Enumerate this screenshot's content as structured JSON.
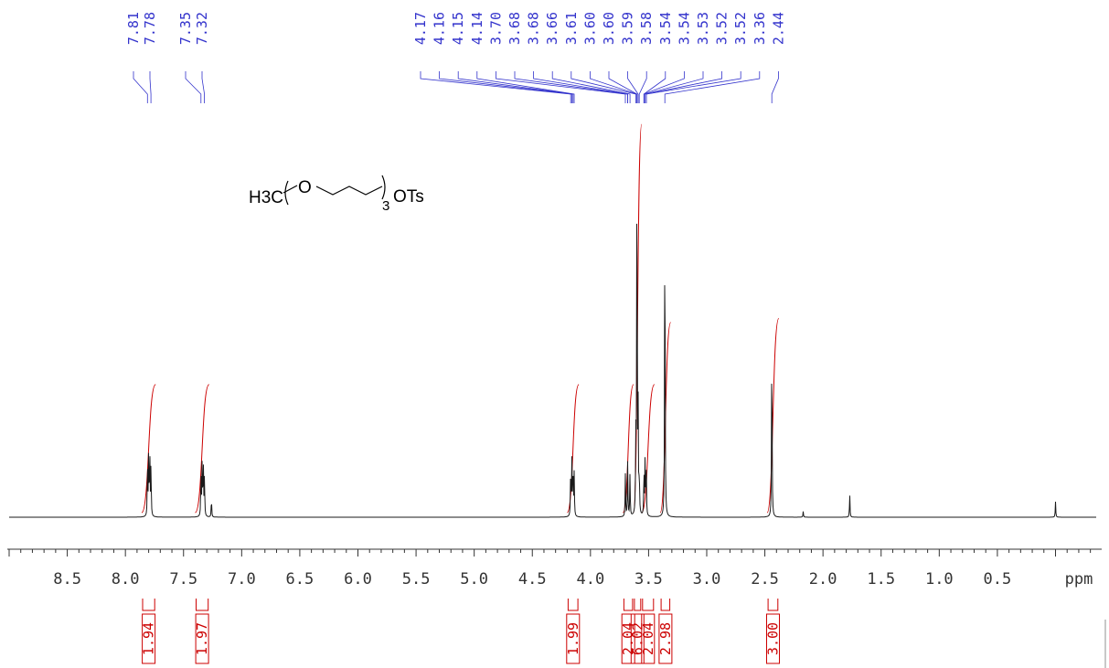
{
  "chart_data": {
    "type": "line",
    "subtype": "1H NMR spectrum",
    "x_unit": "ppm",
    "x_reversed": true,
    "xlim": [
      9.0,
      -0.35
    ],
    "x_ticks": [
      "8.5",
      "8.0",
      "7.5",
      "7.0",
      "6.5",
      "6.0",
      "5.5",
      "5.0",
      "4.5",
      "4.0",
      "3.5",
      "3.0",
      "2.5",
      "2.0",
      "1.5",
      "1.0",
      "0.5"
    ],
    "structure_label": {
      "left": "H3C",
      "repeat_unit": "O",
      "subscript": "3",
      "right": "OTs"
    },
    "peak_labels": {
      "aromatic_group_1": [
        "7.81",
        "7.78"
      ],
      "aromatic_group_2": [
        "7.35",
        "7.32"
      ],
      "aliphatic": [
        "4.17",
        "4.16",
        "4.15",
        "4.14",
        "3.70",
        "3.68",
        "3.68",
        "3.66",
        "3.61",
        "3.60",
        "3.60",
        "3.59",
        "3.58",
        "3.54",
        "3.54",
        "3.53",
        "3.52",
        "3.52",
        "3.36",
        "2.44"
      ]
    },
    "peaks": [
      {
        "ppm": 7.81,
        "height": 0.14
      },
      {
        "ppm": 7.8,
        "height": 0.16
      },
      {
        "ppm": 7.79,
        "height": 0.16
      },
      {
        "ppm": 7.78,
        "height": 0.14
      },
      {
        "ppm": 7.35,
        "height": 0.12
      },
      {
        "ppm": 7.34,
        "height": 0.14
      },
      {
        "ppm": 7.33,
        "height": 0.14
      },
      {
        "ppm": 7.32,
        "height": 0.11
      },
      {
        "ppm": 7.26,
        "height": 0.05
      },
      {
        "ppm": 4.17,
        "height": 0.13
      },
      {
        "ppm": 4.16,
        "height": 0.14
      },
      {
        "ppm": 4.15,
        "height": 0.14
      },
      {
        "ppm": 4.14,
        "height": 0.11
      },
      {
        "ppm": 3.7,
        "height": 0.11
      },
      {
        "ppm": 3.68,
        "height": 0.14
      },
      {
        "ppm": 3.66,
        "height": 0.11
      },
      {
        "ppm": 3.61,
        "height": 0.19
      },
      {
        "ppm": 3.6,
        "height": 1.0
      },
      {
        "ppm": 3.59,
        "height": 0.26
      },
      {
        "ppm": 3.58,
        "height": 0.1
      },
      {
        "ppm": 3.54,
        "height": 0.12
      },
      {
        "ppm": 3.53,
        "height": 0.15
      },
      {
        "ppm": 3.52,
        "height": 0.13
      },
      {
        "ppm": 3.36,
        "height": 0.87
      },
      {
        "ppm": 2.44,
        "height": 0.49
      },
      {
        "ppm": 2.17,
        "height": 0.015
      },
      {
        "ppm": 1.77,
        "height": 0.06
      },
      {
        "ppm": 0.0,
        "height": 0.04
      }
    ],
    "integrals": [
      {
        "from": 7.86,
        "to": 7.74,
        "value": "1.94",
        "rise": 0.33
      },
      {
        "from": 7.4,
        "to": 7.28,
        "value": "1.97",
        "rise": 0.33
      },
      {
        "from": 4.2,
        "to": 4.1,
        "value": "1.99",
        "rise": 0.33
      },
      {
        "from": 3.72,
        "to": 3.63,
        "value": "2.04",
        "rise": 0.33
      },
      {
        "from": 3.63,
        "to": 3.56,
        "value": "6.02",
        "rise": 1.0
      },
      {
        "from": 3.56,
        "to": 3.45,
        "value": "2.04",
        "rise": 0.33
      },
      {
        "from": 3.4,
        "to": 3.31,
        "value": "2.98",
        "rise": 0.49
      },
      {
        "from": 2.48,
        "to": 2.38,
        "value": "3.00",
        "rise": 0.5
      }
    ],
    "colors": {
      "spectrum": "#1a1a1a",
      "integral": "#cc0000",
      "peak_label": "#3333cc",
      "axis": "#333333",
      "structure": "#000000"
    }
  }
}
